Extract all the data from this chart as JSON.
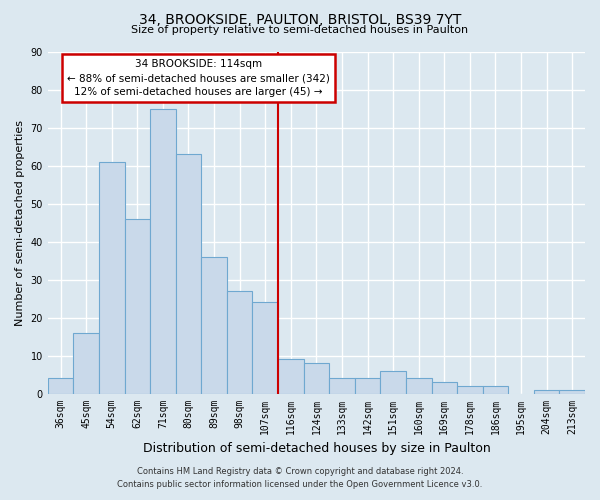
{
  "title": "34, BROOKSIDE, PAULTON, BRISTOL, BS39 7YT",
  "subtitle": "Size of property relative to semi-detached houses in Paulton",
  "xlabel": "Distribution of semi-detached houses by size in Paulton",
  "ylabel": "Number of semi-detached properties",
  "categories": [
    "36sqm",
    "45sqm",
    "54sqm",
    "62sqm",
    "71sqm",
    "80sqm",
    "89sqm",
    "98sqm",
    "107sqm",
    "116sqm",
    "124sqm",
    "133sqm",
    "142sqm",
    "151sqm",
    "160sqm",
    "169sqm",
    "178sqm",
    "186sqm",
    "195sqm",
    "204sqm",
    "213sqm"
  ],
  "values": [
    4,
    16,
    61,
    46,
    75,
    63,
    36,
    27,
    24,
    9,
    8,
    4,
    4,
    6,
    4,
    3,
    2,
    2,
    0,
    1,
    1
  ],
  "bar_color": "#c9d9ea",
  "bar_edge_color": "#6fa8d0",
  "marker_line_color": "#cc0000",
  "marker_line_index": 9,
  "annotation_title": "34 BROOKSIDE: 114sqm",
  "annotation_line1": "← 88% of semi-detached houses are smaller (342)",
  "annotation_line2": "12% of semi-detached houses are larger (45) →",
  "annotation_box_facecolor": "#ffffff",
  "annotation_box_edgecolor": "#cc0000",
  "ylim": [
    0,
    90
  ],
  "yticks": [
    0,
    10,
    20,
    30,
    40,
    50,
    60,
    70,
    80,
    90
  ],
  "bg_color": "#dce8f0",
  "plot_bg_color": "#dce8f0",
  "grid_color": "#ffffff",
  "title_fontsize": 10,
  "subtitle_fontsize": 8,
  "ylabel_fontsize": 8,
  "xlabel_fontsize": 9,
  "tick_fontsize": 7,
  "footer_fontsize": 6,
  "footer_line1": "Contains HM Land Registry data © Crown copyright and database right 2024.",
  "footer_line2": "Contains public sector information licensed under the Open Government Licence v3.0."
}
